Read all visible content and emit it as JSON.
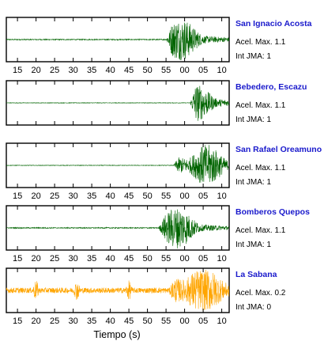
{
  "chart_data": {
    "type": "line",
    "xlabel": "Tiempo (s)",
    "x_tick_labels": [
      "15",
      "20",
      "25",
      "30",
      "35",
      "40",
      "45",
      "50",
      "55",
      "00",
      "05",
      "10"
    ],
    "xlim": [
      12,
      72
    ],
    "grid": false,
    "panels": [
      {
        "name": "San Ignacio Acosta",
        "acel_label": "Acel. Max. 1.1",
        "int_label": "Int JMA: 1",
        "color": "#006400",
        "noise_amp": 0.04,
        "onset": 55,
        "peak_amp": 1.0,
        "peak_time": 59,
        "bursts": [],
        "show_ticks": true
      },
      {
        "name": "Bebedero, Escazu",
        "acel_label": "Acel. Max. 1.1",
        "int_label": "Int JMA: 1",
        "color": "#006400",
        "noise_amp": 0.02,
        "onset": 61.5,
        "peak_amp": 0.9,
        "peak_time": 63,
        "bursts": [],
        "show_ticks": false
      },
      {
        "name": "San Rafael Oreamuno",
        "acel_label": "Acel. Max. 1.1",
        "int_label": "Int JMA: 1",
        "color": "#006400",
        "noise_amp": 0.02,
        "onset": 57,
        "peak_amp": 1.0,
        "peak_time": 66,
        "bursts": [],
        "show_ticks": true
      },
      {
        "name": "Bomberos Quepos",
        "acel_label": "Acel. Max. 1.1",
        "int_label": "Int JMA: 1",
        "color": "#006400",
        "noise_amp": 0.04,
        "onset": 53,
        "peak_amp": 1.0,
        "peak_time": 58,
        "bursts": [],
        "show_ticks": true
      },
      {
        "name": "La Sabana",
        "acel_label": "Acel. Max. 0.2",
        "int_label": "Int JMA: 0",
        "color": "#FFA500",
        "noise_amp": 0.22,
        "onset": 56,
        "peak_amp": 1.0,
        "peak_time": 65,
        "bursts": [
          20,
          31,
          45
        ],
        "show_ticks": true
      }
    ]
  }
}
